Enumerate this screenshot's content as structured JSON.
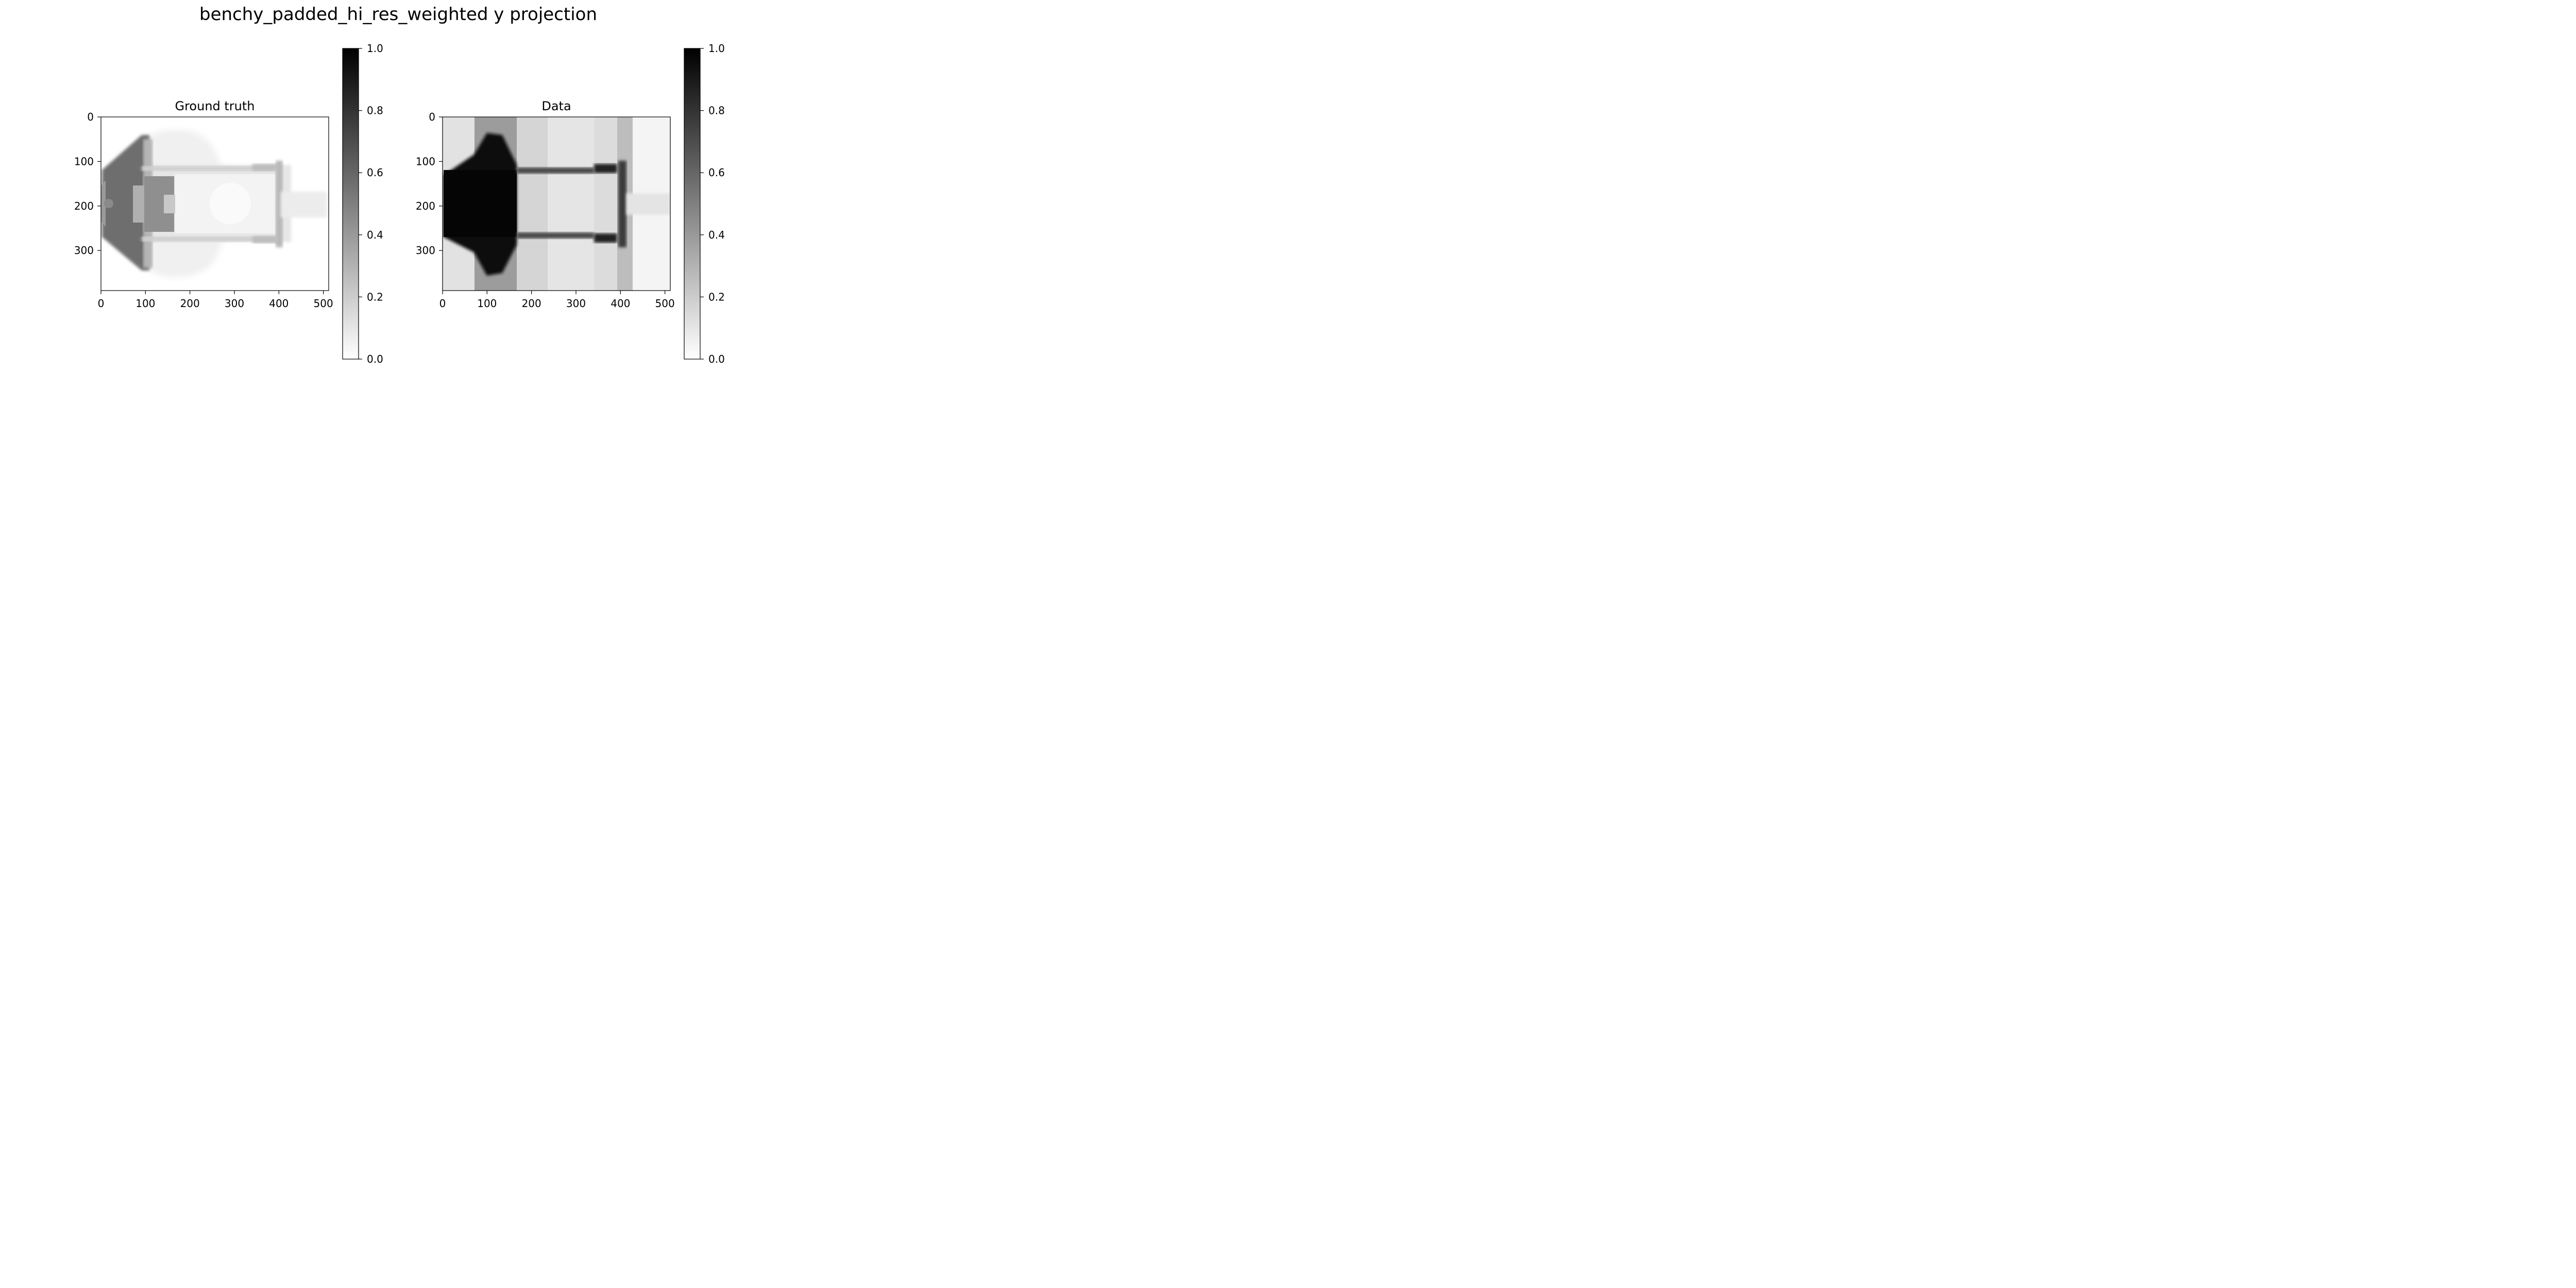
{
  "figure": {
    "suptitle": "benchy_padded_hi_res_weighted y projection"
  },
  "chart_data": [
    {
      "type": "heatmap",
      "title": "Ground truth",
      "xlim": [
        0,
        512
      ],
      "ylim": [
        390,
        0
      ],
      "x_ticks": [
        "0",
        "100",
        "200",
        "300",
        "400",
        "500"
      ],
      "y_ticks": [
        "0",
        "100",
        "200",
        "300"
      ],
      "colormap": "gray_r",
      "colorbar": {
        "range": [
          0.0,
          1.0
        ],
        "ticks": [
          "0.0",
          "0.2",
          "0.4",
          "0.6",
          "0.8",
          "1.0"
        ]
      }
    },
    {
      "type": "heatmap",
      "title": "Data",
      "xlim": [
        0,
        512
      ],
      "ylim": [
        390,
        0
      ],
      "x_ticks": [
        "0",
        "100",
        "200",
        "300",
        "400",
        "500"
      ],
      "y_ticks": [
        "0",
        "100",
        "200",
        "300"
      ],
      "colormap": "gray_r",
      "colorbar": {
        "range": [
          0.0,
          1.0
        ],
        "ticks": [
          "0.0",
          "0.2",
          "0.4",
          "0.6",
          "0.8",
          "1.0"
        ]
      }
    }
  ]
}
